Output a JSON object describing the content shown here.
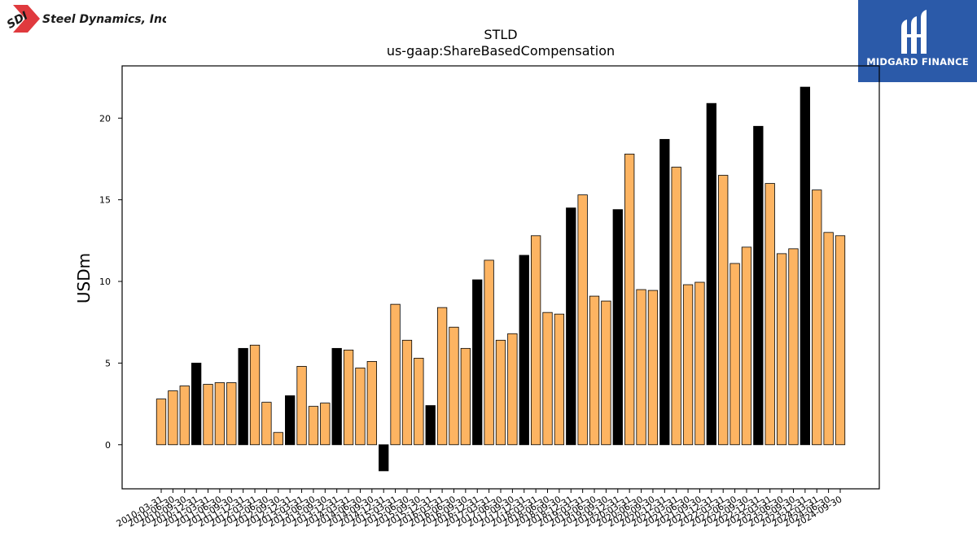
{
  "branding": {
    "company_logo_text": "Steel Dynamics, Inc.",
    "company_logo_mark": "SDI",
    "finance_logo_text": "MIDGARD FINANCE"
  },
  "chart_data": {
    "type": "bar",
    "title": "STLD",
    "subtitle": "us-gaap:ShareBasedCompensation",
    "xlabel": "",
    "ylabel": "USDm",
    "ylim": [
      -2.7,
      23.2
    ],
    "yticks": [
      0,
      5,
      10,
      15,
      20
    ],
    "grid": false,
    "legend": "none",
    "colors": {
      "quarter": "#fdb462",
      "fiscal_year_end": "#000000",
      "edge": "#000000"
    },
    "categories": [
      "2010-03-31",
      "2010-06-30",
      "2010-09-30",
      "2010-12-31",
      "2011-03-31",
      "2011-06-30",
      "2011-09-30",
      "2011-12-31",
      "2012-03-31",
      "2012-06-30",
      "2012-09-30",
      "2012-12-31",
      "2013-03-31",
      "2013-06-30",
      "2013-09-30",
      "2013-12-31",
      "2014-03-31",
      "2014-06-30",
      "2014-09-30",
      "2014-12-31",
      "2015-03-31",
      "2015-06-30",
      "2015-09-30",
      "2015-12-31",
      "2016-03-31",
      "2016-06-30",
      "2016-09-30",
      "2016-12-31",
      "2017-03-31",
      "2017-06-30",
      "2017-09-30",
      "2017-12-31",
      "2018-03-31",
      "2018-06-30",
      "2018-09-30",
      "2018-12-31",
      "2019-03-31",
      "2019-06-30",
      "2019-09-30",
      "2019-12-31",
      "2020-03-31",
      "2020-06-30",
      "2020-09-30",
      "2020-12-31",
      "2021-03-31",
      "2021-06-30",
      "2021-09-30",
      "2021-12-31",
      "2022-03-31",
      "2022-06-30",
      "2022-09-30",
      "2022-12-31",
      "2023-03-31",
      "2023-06-30",
      "2023-09-30",
      "2023-12-31",
      "2024-03-31",
      "2024-06-30",
      "2024-09-30"
    ],
    "values": [
      2.8,
      3.3,
      3.6,
      5.0,
      3.7,
      3.8,
      3.8,
      5.9,
      6.1,
      2.6,
      0.75,
      3.0,
      4.8,
      2.35,
      2.55,
      5.9,
      5.8,
      4.7,
      5.1,
      -1.6,
      8.6,
      6.4,
      5.3,
      2.4,
      8.4,
      7.2,
      5.9,
      10.1,
      11.3,
      6.4,
      6.8,
      11.6,
      12.8,
      8.1,
      8.0,
      14.5,
      15.3,
      9.1,
      8.8,
      14.4,
      17.8,
      9.5,
      9.45,
      18.7,
      17.0,
      9.8,
      9.95,
      20.9,
      16.5,
      11.1,
      12.1,
      19.5,
      16.0,
      11.7,
      12.0,
      21.9,
      15.6,
      13.0,
      12.8
    ],
    "highlight": [
      false,
      false,
      false,
      true,
      false,
      false,
      false,
      true,
      false,
      false,
      false,
      true,
      false,
      false,
      false,
      true,
      false,
      false,
      false,
      true,
      false,
      false,
      false,
      true,
      false,
      false,
      false,
      true,
      false,
      false,
      false,
      true,
      false,
      false,
      false,
      true,
      false,
      false,
      false,
      true,
      false,
      false,
      false,
      true,
      false,
      false,
      false,
      true,
      false,
      false,
      false,
      true,
      false,
      false,
      false,
      true,
      false,
      false,
      false
    ]
  }
}
